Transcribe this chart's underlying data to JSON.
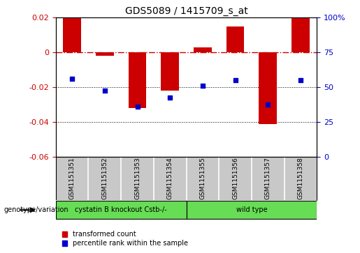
{
  "title": "GDS5089 / 1415709_s_at",
  "samples": [
    "GSM1151351",
    "GSM1151352",
    "GSM1151353",
    "GSM1151354",
    "GSM1151355",
    "GSM1151356",
    "GSM1151357",
    "GSM1151358"
  ],
  "red_values": [
    0.02,
    -0.002,
    -0.032,
    -0.022,
    0.003,
    0.015,
    -0.041,
    0.02
  ],
  "blue_y": [
    -0.015,
    -0.022,
    -0.031,
    -0.026,
    -0.019,
    -0.016,
    -0.03,
    -0.016
  ],
  "ylim": [
    -0.06,
    0.02
  ],
  "yticks_left": [
    0.02,
    0.0,
    -0.02,
    -0.04,
    -0.06
  ],
  "yticks_right": [
    100,
    75,
    50,
    25,
    0
  ],
  "right_tick_labels": [
    "100%",
    "75",
    "50",
    "25",
    "0"
  ],
  "bar_color": "#cc0000",
  "dot_color": "#0000cc",
  "background_color": "#ffffff",
  "label_bg": "#c8c8c8",
  "green_color": "#66dd55",
  "genotype_label": "genotype/variation",
  "group1_label": "cystatin B knockout Cstb-/-",
  "group2_label": "wild type",
  "legend_red": "transformed count",
  "legend_blue": "percentile rank within the sample",
  "bar_width": 0.55,
  "title_fontsize": 10,
  "tick_fontsize": 8,
  "label_fontsize": 6.5
}
